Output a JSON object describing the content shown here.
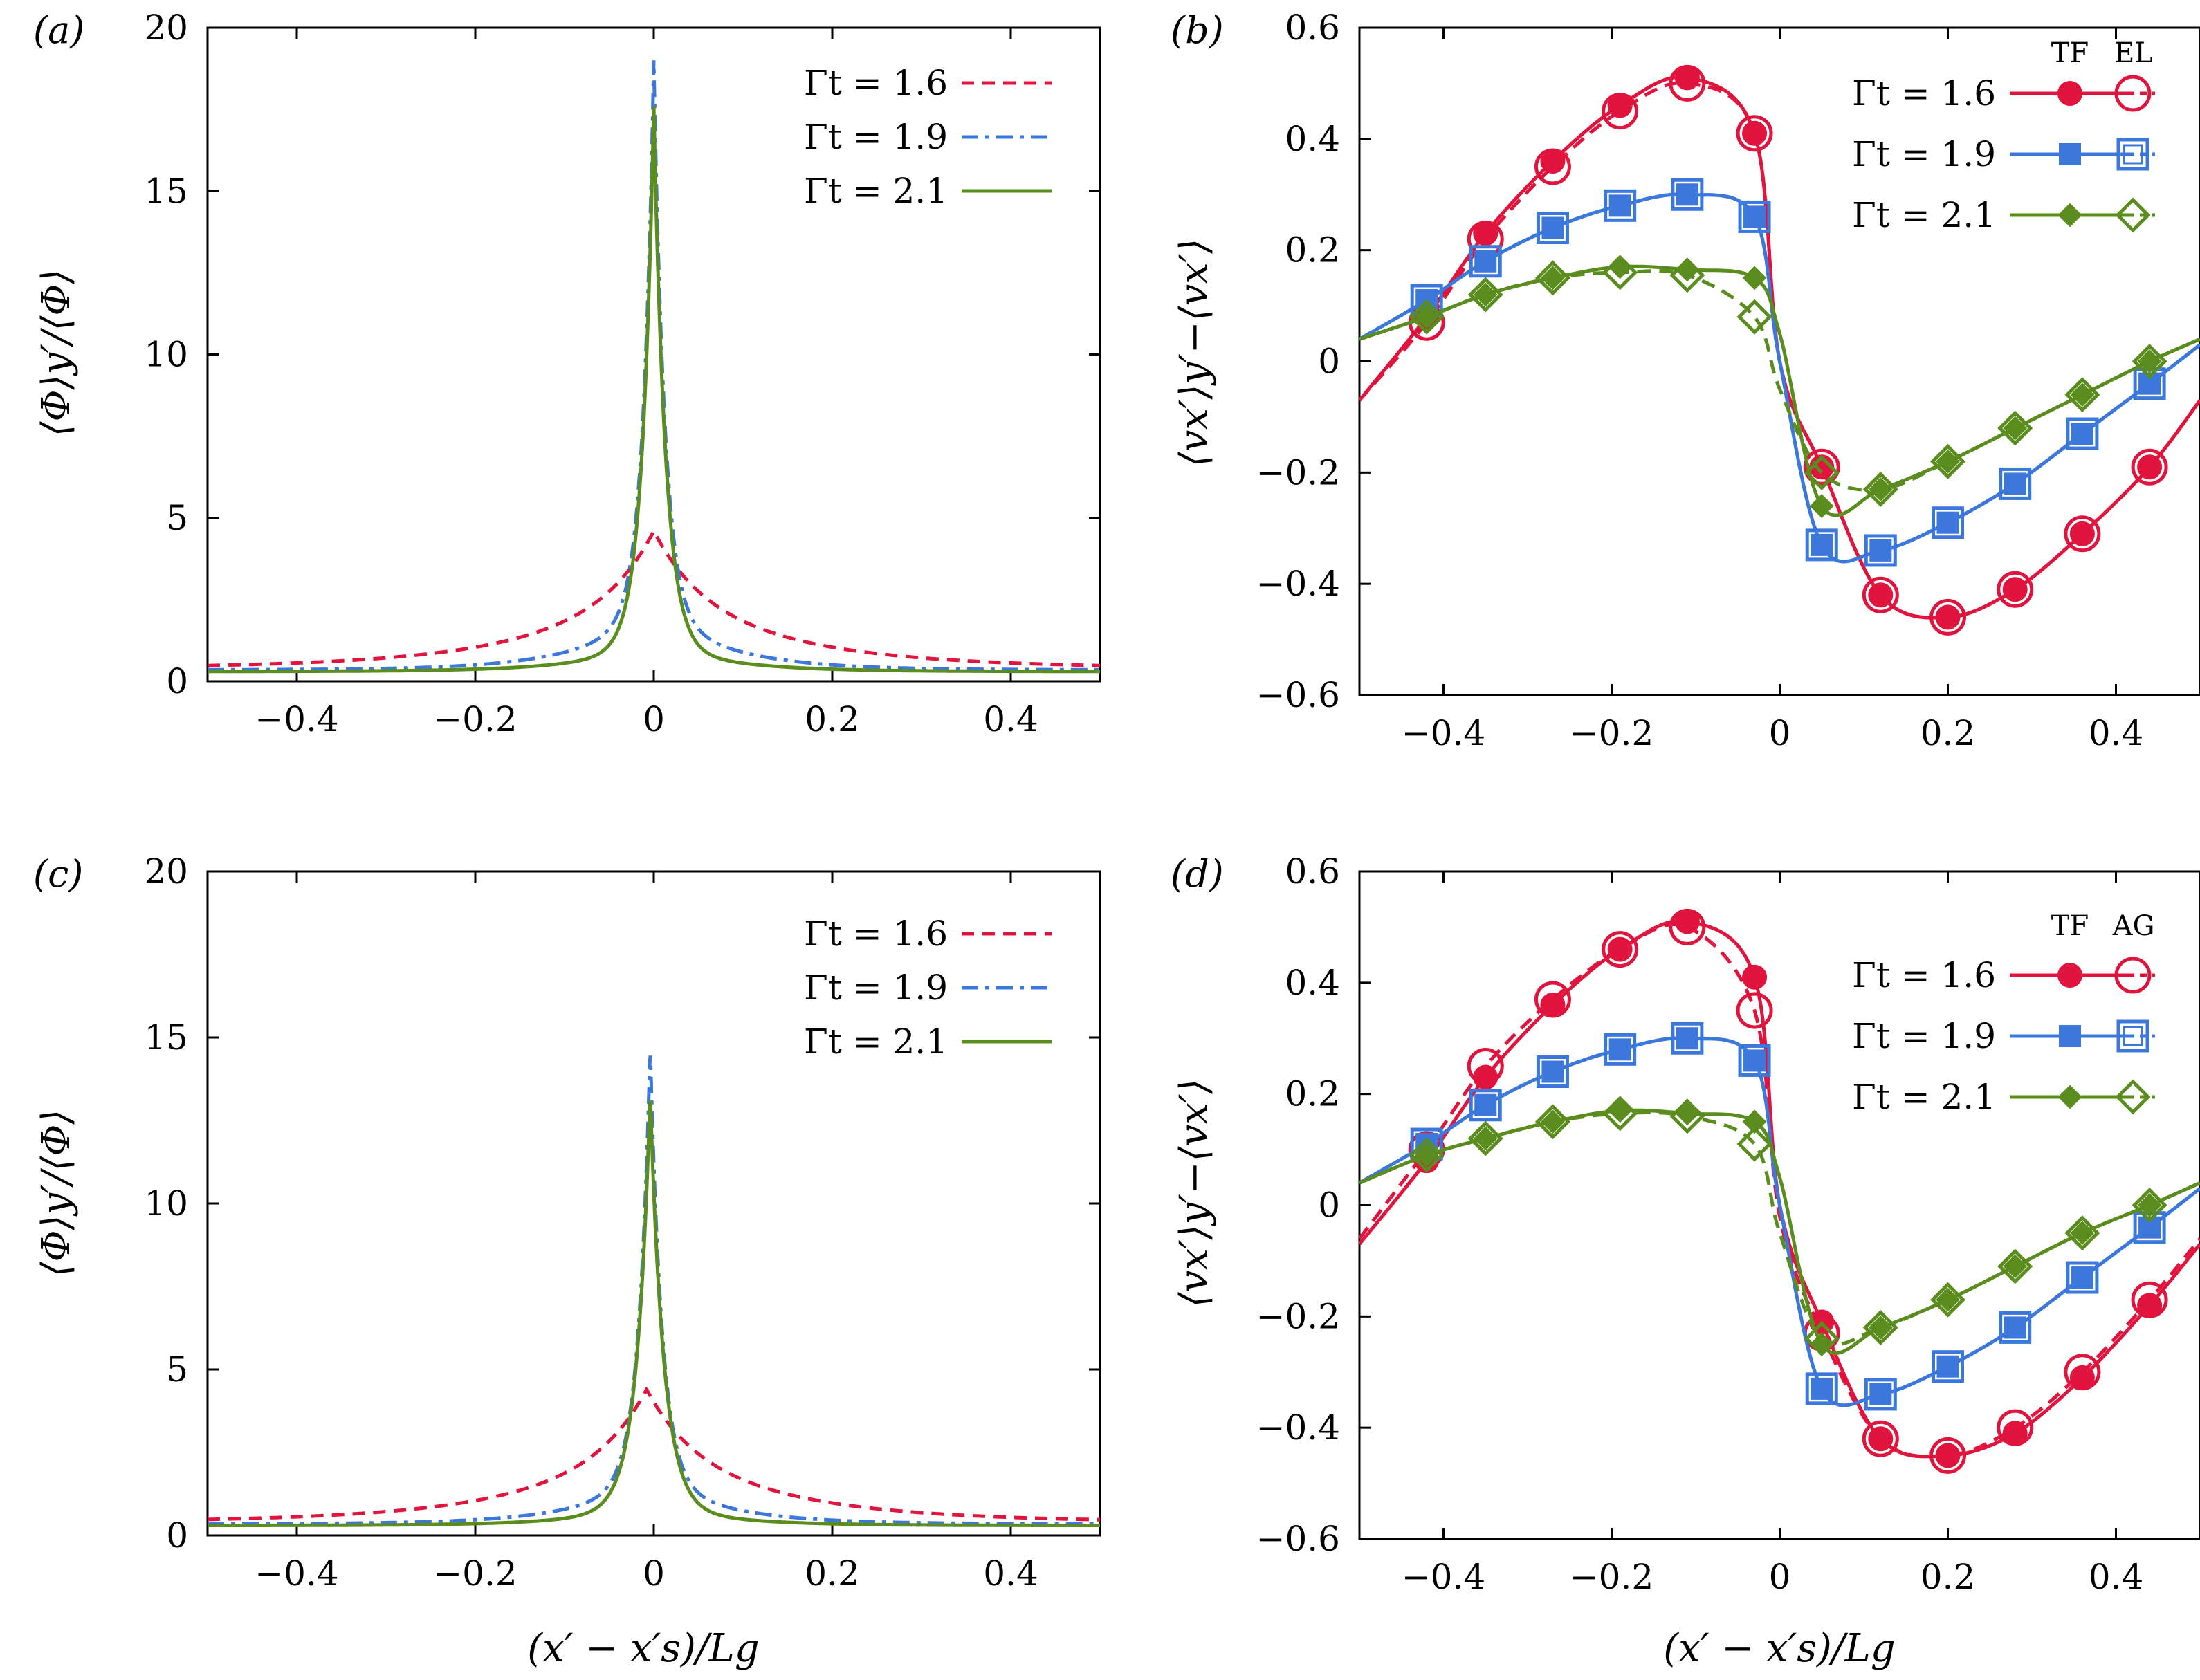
{
  "figure": {
    "xlabel": "(x′ − x′s)/Lg",
    "panels": [
      {
        "id": "a",
        "label": "(a)",
        "ylabel": "⟨Φ⟩y′/⟨Φ⟩"
      },
      {
        "id": "b",
        "label": "(b)",
        "ylabel": "⟨vx′⟩y′−⟨vx′⟩",
        "legend_headers": [
          "TF",
          "EL"
        ]
      },
      {
        "id": "c",
        "label": "(c)",
        "ylabel": "⟨Φ⟩y′/⟨Φ⟩"
      },
      {
        "id": "d",
        "label": "(d)",
        "ylabel": "⟨vx′⟩y′−⟨vx′⟩",
        "legend_headers": [
          "TF",
          "AG"
        ]
      }
    ]
  },
  "colors": {
    "series_1_6": "#e0143c",
    "series_1_9": "#3c78dc",
    "series_2_1": "#5a8c1e"
  },
  "chart_data": [
    {
      "panel": "a",
      "type": "line",
      "title": "",
      "xlabel": "(x′ − x′s)/Lg",
      "ylabel": "⟨Φ⟩y′/⟨Φ⟩",
      "xlim": [
        -0.5,
        0.5
      ],
      "ylim": [
        0,
        20
      ],
      "xticks": [
        -0.4,
        -0.2,
        0,
        0.2,
        0.4
      ],
      "yticks": [
        0,
        5,
        10,
        15,
        20
      ],
      "series": [
        {
          "name": "Γt = 1.6",
          "x0": 0.0,
          "peak": 4.6,
          "w1": 0.05,
          "w2": 0.15,
          "a1": 0.55,
          "base": 0.4
        },
        {
          "name": "Γt = 1.9",
          "x0": 0.0,
          "peak": 19.0,
          "w1": 0.012,
          "w2": 0.08,
          "a1": 0.1,
          "base": 0.35
        },
        {
          "name": "Γt = 2.1",
          "x0": 0.0,
          "peak": 17.6,
          "w1": 0.013,
          "w2": 0.08,
          "a1": 0.05,
          "base": 0.3
        }
      ]
    },
    {
      "panel": "b",
      "type": "line",
      "title": "",
      "xlabel": "(x′ − x′s)/Lg",
      "ylabel": "⟨vx′⟩y′−⟨vx′⟩",
      "xlim": [
        -0.5,
        0.5
      ],
      "ylim": [
        -0.6,
        0.6
      ],
      "xticks": [
        -0.4,
        -0.2,
        0,
        0.2,
        0.4
      ],
      "yticks": [
        -0.6,
        -0.4,
        -0.2,
        0,
        0.2,
        0.4,
        0.6
      ],
      "x": [
        -0.5,
        -0.42,
        -0.35,
        -0.27,
        -0.19,
        -0.11,
        -0.03,
        0.0,
        0.05,
        0.12,
        0.2,
        0.28,
        0.36,
        0.44,
        0.5
      ],
      "marker_x": [
        -0.42,
        -0.35,
        -0.27,
        -0.19,
        -0.11,
        -0.03,
        0.05,
        0.12,
        0.2,
        0.28,
        0.36,
        0.44
      ],
      "series": [
        {
          "name": "Γt = 1.6",
          "marker": "circle",
          "tf": [
            -0.07,
            0.08,
            0.23,
            0.36,
            0.46,
            0.51,
            0.41,
            0.0,
            -0.19,
            -0.42,
            -0.46,
            -0.41,
            -0.31,
            -0.19,
            -0.07
          ],
          "other": [
            -0.07,
            0.07,
            0.22,
            0.35,
            0.45,
            0.5,
            0.41,
            0.0,
            -0.19,
            -0.42,
            -0.46,
            -0.41,
            -0.31,
            -0.19,
            -0.07
          ]
        },
        {
          "name": "Γt = 1.9",
          "marker": "square",
          "tf": [
            0.04,
            0.11,
            0.18,
            0.24,
            0.28,
            0.3,
            0.26,
            0.0,
            -0.33,
            -0.34,
            -0.29,
            -0.22,
            -0.13,
            -0.04,
            0.03
          ],
          "other": [
            0.04,
            0.11,
            0.18,
            0.24,
            0.28,
            0.3,
            0.26,
            0.0,
            -0.33,
            -0.34,
            -0.29,
            -0.22,
            -0.13,
            -0.04,
            0.03
          ]
        },
        {
          "name": "Γt = 2.1",
          "marker": "diamond",
          "tf": [
            0.04,
            0.08,
            0.12,
            0.15,
            0.17,
            0.165,
            0.15,
            0.05,
            -0.26,
            -0.23,
            -0.18,
            -0.12,
            -0.06,
            0.0,
            0.04
          ],
          "other": [
            0.04,
            0.08,
            0.12,
            0.15,
            0.16,
            0.155,
            0.08,
            -0.05,
            -0.2,
            -0.23,
            -0.18,
            -0.12,
            -0.06,
            0.0,
            0.04
          ]
        }
      ]
    },
    {
      "panel": "c",
      "type": "line",
      "title": "",
      "xlabel": "(x′ − x′s)/Lg",
      "ylabel": "⟨Φ⟩y′/⟨Φ⟩",
      "xlim": [
        -0.5,
        0.5
      ],
      "ylim": [
        0,
        20
      ],
      "xticks": [
        -0.4,
        -0.2,
        0,
        0.2,
        0.4
      ],
      "yticks": [
        0,
        5,
        10,
        15,
        20
      ],
      "series": [
        {
          "name": "Γt = 1.6",
          "x0": -0.008,
          "peak": 4.4,
          "w1": 0.05,
          "w2": 0.15,
          "a1": 0.55,
          "base": 0.4
        },
        {
          "name": "Γt = 1.9",
          "x0": -0.004,
          "peak": 14.7,
          "w1": 0.013,
          "w2": 0.08,
          "a1": 0.1,
          "base": 0.35
        },
        {
          "name": "Γt = 2.1",
          "x0": -0.004,
          "peak": 13.3,
          "w1": 0.015,
          "w2": 0.08,
          "a1": 0.05,
          "base": 0.3
        }
      ]
    },
    {
      "panel": "d",
      "type": "line",
      "title": "",
      "xlabel": "(x′ − x′s)/Lg",
      "ylabel": "⟨vx′⟩y′−⟨vx′⟩",
      "xlim": [
        -0.5,
        0.5
      ],
      "ylim": [
        -0.6,
        0.6
      ],
      "xticks": [
        -0.4,
        -0.2,
        0,
        0.2,
        0.4
      ],
      "yticks": [
        -0.6,
        -0.4,
        -0.2,
        0,
        0.2,
        0.4,
        0.6
      ],
      "x": [
        -0.5,
        -0.42,
        -0.35,
        -0.27,
        -0.19,
        -0.11,
        -0.03,
        0.0,
        0.05,
        0.12,
        0.2,
        0.28,
        0.36,
        0.44,
        0.5
      ],
      "marker_x": [
        -0.42,
        -0.35,
        -0.27,
        -0.19,
        -0.11,
        -0.03,
        0.05,
        0.12,
        0.2,
        0.28,
        0.36,
        0.44
      ],
      "series": [
        {
          "name": "Γt = 1.6",
          "marker": "circle",
          "tf": [
            -0.07,
            0.08,
            0.23,
            0.36,
            0.46,
            0.51,
            0.41,
            0.0,
            -0.21,
            -0.42,
            -0.45,
            -0.41,
            -0.31,
            -0.18,
            -0.07
          ],
          "other": [
            -0.06,
            0.1,
            0.25,
            0.37,
            0.46,
            0.5,
            0.35,
            -0.02,
            -0.23,
            -0.42,
            -0.45,
            -0.4,
            -0.3,
            -0.17,
            -0.06
          ]
        },
        {
          "name": "Γt = 1.9",
          "marker": "square",
          "tf": [
            0.04,
            0.11,
            0.18,
            0.24,
            0.28,
            0.3,
            0.26,
            0.0,
            -0.33,
            -0.34,
            -0.29,
            -0.22,
            -0.13,
            -0.04,
            0.03
          ],
          "other": [
            0.04,
            0.11,
            0.18,
            0.24,
            0.28,
            0.3,
            0.26,
            0.0,
            -0.33,
            -0.34,
            -0.29,
            -0.22,
            -0.13,
            -0.04,
            0.03
          ]
        },
        {
          "name": "Γt = 2.1",
          "marker": "diamond",
          "tf": [
            0.04,
            0.09,
            0.12,
            0.15,
            0.17,
            0.165,
            0.15,
            0.05,
            -0.25,
            -0.22,
            -0.17,
            -0.11,
            -0.05,
            0.0,
            0.04
          ],
          "other": [
            0.04,
            0.09,
            0.12,
            0.15,
            0.165,
            0.16,
            0.11,
            -0.05,
            -0.24,
            -0.22,
            -0.17,
            -0.11,
            -0.05,
            0.0,
            0.04
          ]
        }
      ]
    }
  ]
}
